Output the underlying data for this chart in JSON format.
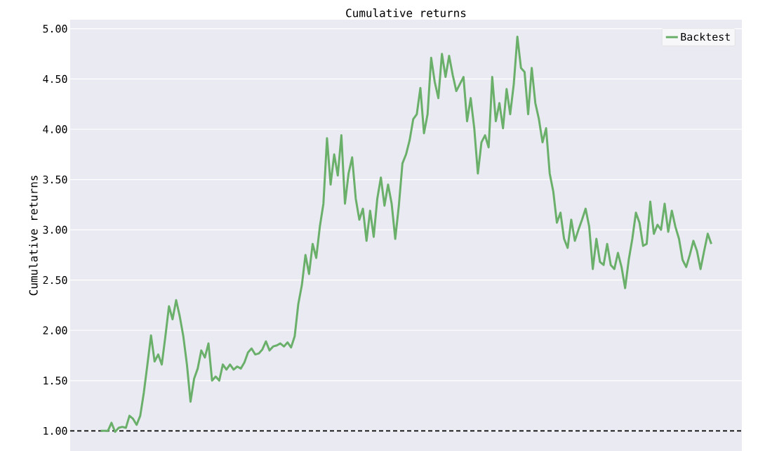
{
  "chart_data": {
    "type": "line",
    "title": "Cumulative returns",
    "ylabel": "Cumulative returns",
    "ylim": [
      0.8,
      5.09
    ],
    "yticks": [
      {
        "value": 1,
        "label": "1.00"
      },
      {
        "value": 1.5,
        "label": "1.50"
      },
      {
        "value": 2,
        "label": "2.00"
      },
      {
        "value": 2.5,
        "label": "2.50"
      },
      {
        "value": 3,
        "label": "3.00"
      },
      {
        "value": 3.5,
        "label": "3.50"
      },
      {
        "value": 4,
        "label": "4.00"
      },
      {
        "value": 4.5,
        "label": "4.50"
      },
      {
        "value": 5,
        "label": "5.00"
      }
    ],
    "tick_labels": "y",
    "grid": "y",
    "legend": "top right",
    "marker": "none",
    "line_style": "solid",
    "ref_lines": [
      {
        "axis": "y",
        "value": 1,
        "color": "#000000",
        "line_style": "dashed"
      }
    ],
    "categories": [
      null,
      null,
      null,
      null,
      null,
      null,
      null,
      null,
      null,
      null,
      null,
      null,
      null,
      null,
      null,
      null,
      null,
      null,
      null,
      null,
      null,
      null,
      null,
      null,
      null,
      null,
      null,
      null,
      null,
      null,
      null,
      null,
      null,
      null,
      null,
      null,
      null,
      null,
      null,
      null,
      null,
      null,
      null,
      null,
      null,
      null,
      null,
      null,
      null,
      null,
      null,
      null,
      null,
      null,
      null,
      null,
      null,
      null,
      null,
      null,
      null,
      null,
      null,
      null,
      null,
      null,
      null,
      null,
      null,
      null,
      null,
      null,
      null,
      null,
      null,
      null,
      null,
      null,
      null,
      null,
      null,
      null,
      null,
      null,
      null,
      null,
      null,
      null,
      null,
      null,
      null,
      null,
      null,
      null,
      null,
      null,
      null,
      null,
      null,
      null,
      null,
      null,
      null,
      null,
      null,
      null,
      null,
      null,
      null,
      null,
      null,
      null,
      null,
      null,
      null,
      null,
      null,
      null,
      null,
      null,
      null,
      null,
      null,
      null,
      null,
      null,
      null,
      null,
      null,
      null,
      null,
      null,
      null,
      null,
      null,
      null,
      null,
      null,
      null,
      null,
      null,
      null,
      null,
      null,
      null,
      null,
      null,
      null,
      null,
      null,
      null,
      null,
      null,
      null,
      null,
      null,
      null,
      null,
      null,
      null,
      null,
      null,
      null,
      null,
      null,
      null,
      null,
      null,
      null,
      null,
      null
    ],
    "series": [
      {
        "name": "Backtest",
        "color": "#6aaf6a",
        "values": [
          1.0,
          1.0,
          1.0,
          1.08,
          0.99,
          1.03,
          1.04,
          1.03,
          1.15,
          1.12,
          1.06,
          1.15,
          1.38,
          1.66,
          1.95,
          1.69,
          1.76,
          1.66,
          1.94,
          2.24,
          2.11,
          2.3,
          2.14,
          1.94,
          1.66,
          1.29,
          1.52,
          1.62,
          1.8,
          1.73,
          1.87,
          1.5,
          1.54,
          1.5,
          1.66,
          1.61,
          1.66,
          1.61,
          1.64,
          1.62,
          1.68,
          1.78,
          1.82,
          1.76,
          1.77,
          1.81,
          1.89,
          1.8,
          1.84,
          1.85,
          1.87,
          1.84,
          1.88,
          1.83,
          1.94,
          2.26,
          2.45,
          2.75,
          2.56,
          2.86,
          2.72,
          3.03,
          3.26,
          3.91,
          3.45,
          3.75,
          3.54,
          3.94,
          3.26,
          3.56,
          3.72,
          3.31,
          3.1,
          3.21,
          2.89,
          3.19,
          2.93,
          3.31,
          3.52,
          3.24,
          3.45,
          3.26,
          2.91,
          3.24,
          3.66,
          3.75,
          3.89,
          4.1,
          4.15,
          4.41,
          3.96,
          4.15,
          4.71,
          4.47,
          4.31,
          4.75,
          4.52,
          4.73,
          4.54,
          4.38,
          4.45,
          4.52,
          4.08,
          4.31,
          4.01,
          3.56,
          3.87,
          3.94,
          3.82,
          4.52,
          4.08,
          4.26,
          4.01,
          4.4,
          4.15,
          4.45,
          4.92,
          4.61,
          4.57,
          4.15,
          4.61,
          4.26,
          4.1,
          3.87,
          4.01,
          3.56,
          3.38,
          3.07,
          3.17,
          2.91,
          2.82,
          3.1,
          2.89,
          3.0,
          3.1,
          3.21,
          3.03,
          2.61,
          2.91,
          2.68,
          2.65,
          2.86,
          2.65,
          2.61,
          2.77,
          2.63,
          2.42,
          2.7,
          2.91,
          3.17,
          3.07,
          2.84,
          2.86,
          3.28,
          2.96,
          3.05,
          3.0,
          3.26,
          2.98,
          3.19,
          3.03,
          2.91,
          2.7,
          2.63,
          2.75,
          2.89,
          2.79,
          2.61,
          2.79,
          2.96,
          2.86
        ]
      }
    ]
  }
}
